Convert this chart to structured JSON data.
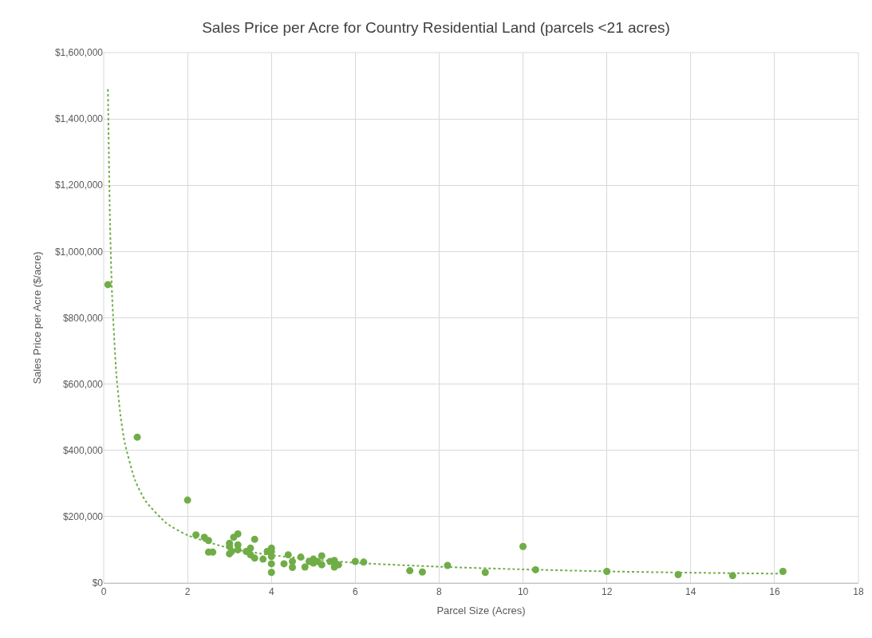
{
  "chart_data": {
    "type": "scatter",
    "title": "Sales Price per Acre for Country Residential Land (parcels <21 acres)",
    "xlabel": "Parcel Size (Acres)",
    "ylabel": "Sales Price per Acre ($/acre)",
    "xlim": [
      0,
      18
    ],
    "xticks": [
      0,
      2,
      4,
      6,
      8,
      10,
      12,
      14,
      16,
      18
    ],
    "ylim": [
      0,
      1600000
    ],
    "yticks": [
      {
        "value": 0,
        "label": "$0"
      },
      {
        "value": 200000,
        "label": "$200,000"
      },
      {
        "value": 400000,
        "label": "$400,000"
      },
      {
        "value": 600000,
        "label": "$600,000"
      },
      {
        "value": 800000,
        "label": "$800,000"
      },
      {
        "value": 1000000,
        "label": "$1,000,000"
      },
      {
        "value": 1200000,
        "label": "$1,200,000"
      },
      {
        "value": 1400000,
        "label": "$1,400,000"
      },
      {
        "value": 1600000,
        "label": "$1,600,000"
      }
    ],
    "grid": true,
    "series": [
      {
        "marker": "circle",
        "color": "#70ad47",
        "x": [
          0.1,
          0.8,
          2.0,
          2.2,
          2.4,
          2.5,
          2.5,
          2.6,
          3.0,
          3.0,
          3.0,
          3.05,
          3.1,
          3.2,
          3.2,
          3.2,
          3.4,
          3.5,
          3.5,
          3.6,
          3.6,
          3.8,
          3.9,
          4.0,
          4.0,
          4.0,
          4.0,
          4.0,
          4.3,
          4.4,
          4.5,
          4.5,
          4.7,
          4.8,
          4.9,
          5.0,
          5.0,
          5.1,
          5.2,
          5.2,
          5.4,
          5.5,
          5.5,
          5.6,
          6.0,
          6.2,
          7.3,
          7.6,
          8.2,
          9.1,
          10.0,
          10.3,
          12.0,
          13.7,
          15.0,
          16.2
        ],
        "values": [
          900000,
          440000,
          250000,
          145000,
          138000,
          128000,
          93000,
          93000,
          120000,
          110000,
          88000,
          95000,
          138000,
          148000,
          115000,
          100000,
          95000,
          105000,
          85000,
          132000,
          75000,
          72000,
          95000,
          105000,
          95000,
          80000,
          58000,
          32000,
          58000,
          85000,
          65000,
          47000,
          78000,
          48000,
          65000,
          72000,
          60000,
          65000,
          82000,
          55000,
          65000,
          68000,
          48000,
          55000,
          65000,
          63000,
          37000,
          33000,
          53000,
          32000,
          110000,
          40000,
          35000,
          25000,
          22000,
          35000
        ]
      },
      {
        "type": "line",
        "marker": "none",
        "line_style": "dotted",
        "color": "#70ad47",
        "x": [
          0.1,
          0.15,
          0.2,
          0.3,
          0.4,
          0.5,
          0.75,
          1,
          1.5,
          2,
          3,
          4,
          6,
          8,
          10,
          12,
          14,
          16.2
        ],
        "values": [
          1490000,
          1087000,
          868000,
          632000,
          506000,
          424000,
          309000,
          247000,
          180000,
          144000,
          105000,
          84000,
          61000,
          49000,
          41000,
          35000,
          31000,
          28000
        ]
      }
    ]
  }
}
